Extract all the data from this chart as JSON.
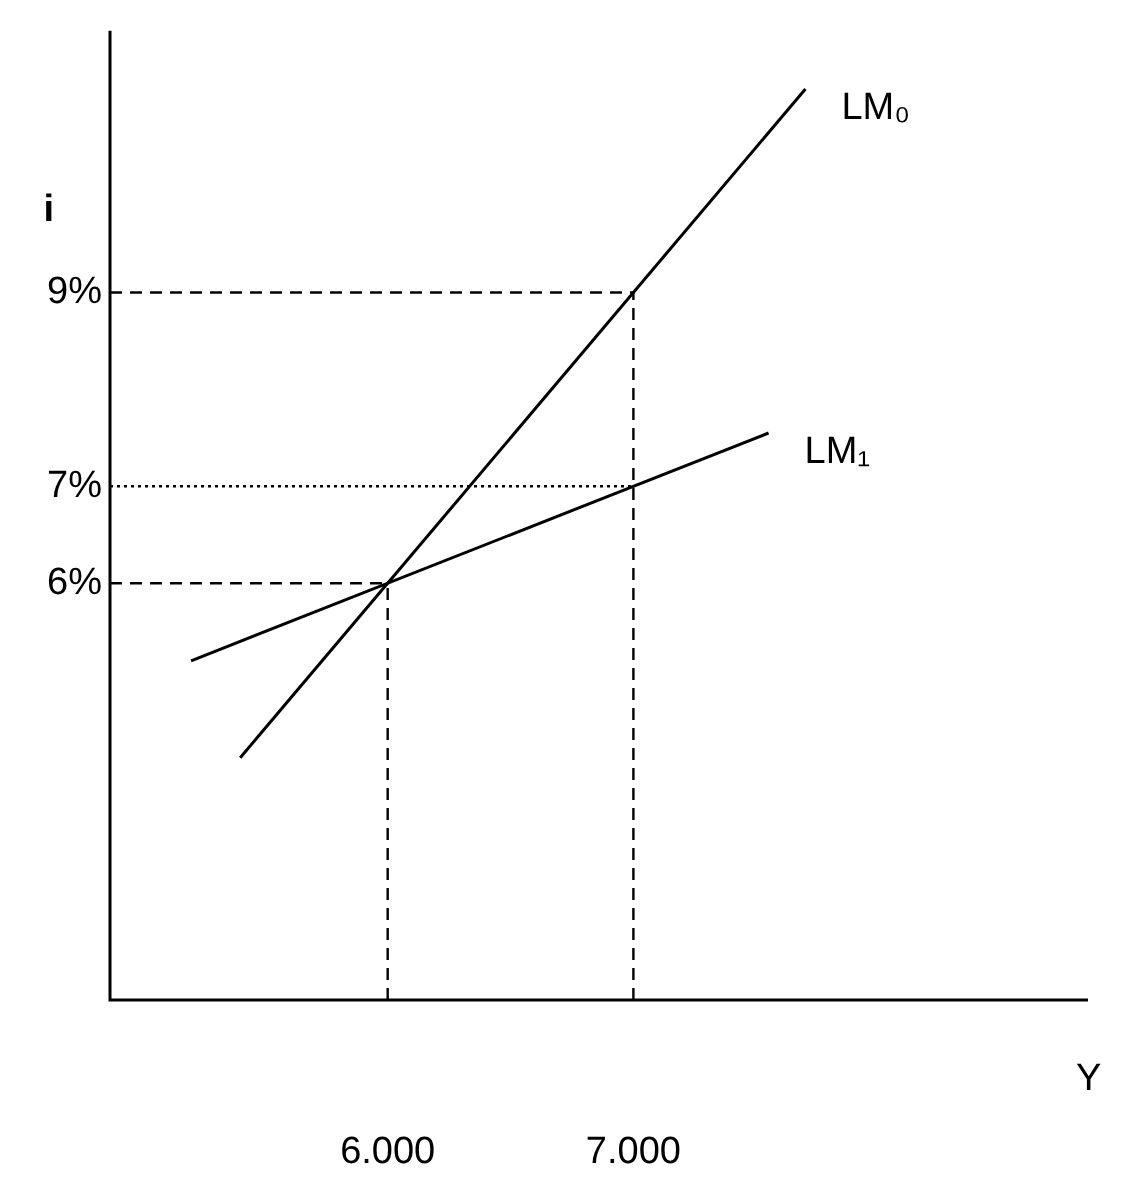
{
  "chart_data": {
    "type": "line",
    "xlabel": "Y",
    "ylabel": "i",
    "xlim": [
      4870,
      8850
    ],
    "ylim": [
      1.7,
      11.7
    ],
    "xticks": [
      {
        "value": 6000,
        "label": "6.000"
      },
      {
        "value": 7000,
        "label": "7.000"
      }
    ],
    "yticks": [
      {
        "value": 6,
        "label": "6%"
      },
      {
        "value": 7,
        "label": "7%"
      },
      {
        "value": 9,
        "label": "9%"
      }
    ],
    "series": [
      {
        "name": "LM₀",
        "color": "#000000",
        "x": [
          5400,
          7700
        ],
        "values": [
          4.2,
          11.1
        ]
      },
      {
        "name": "LM₁",
        "color": "#000000",
        "x": [
          5200,
          7550
        ],
        "values": [
          5.2,
          7.55
        ]
      }
    ],
    "ref_lines": [
      {
        "axis": "y",
        "value": 9,
        "line_style": "dashed"
      },
      {
        "axis": "y",
        "value": 7,
        "line_style": "dotted"
      },
      {
        "axis": "y",
        "value": 6,
        "line_style": "dashed"
      },
      {
        "axis": "x",
        "value": 6000,
        "line_style": "dashed"
      },
      {
        "axis": "x",
        "value": 7000,
        "line_style": "dashed"
      }
    ],
    "grid": false,
    "legend": false,
    "marker": "none",
    "line_style": "solid"
  }
}
